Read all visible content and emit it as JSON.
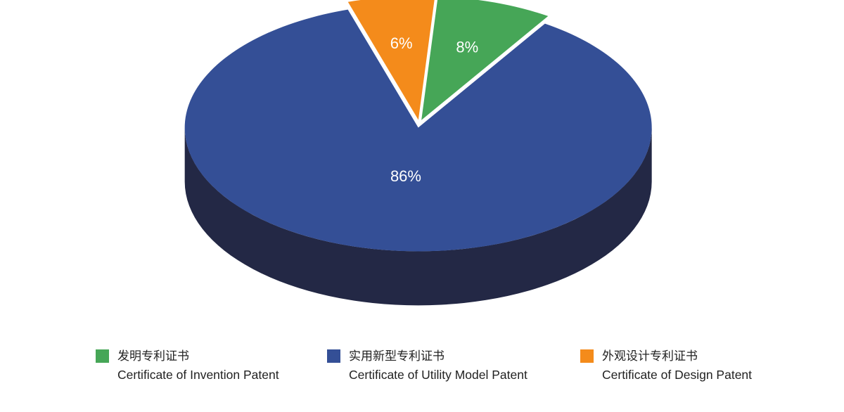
{
  "chart_data": {
    "type": "pie",
    "title": "",
    "slices": [
      {
        "label": "发明专利证书",
        "label_en": "Certificate of Invention Patent",
        "value": 8,
        "display": "8%",
        "color": "#46a657",
        "side_color": "#2e7b3d"
      },
      {
        "label": "实用新型专利证书",
        "label_en": "Certificate of Utility Model Patent",
        "value": 86,
        "display": "86%",
        "color": "#344f96",
        "side_color": "#232845"
      },
      {
        "label": "外观设计专利证书",
        "label_en": "Certificate of Design Patent",
        "value": 6,
        "display": "6%",
        "color": "#f48b1b",
        "side_color": "#b56510"
      }
    ],
    "style": "3d-exploded",
    "legend_position": "bottom"
  }
}
